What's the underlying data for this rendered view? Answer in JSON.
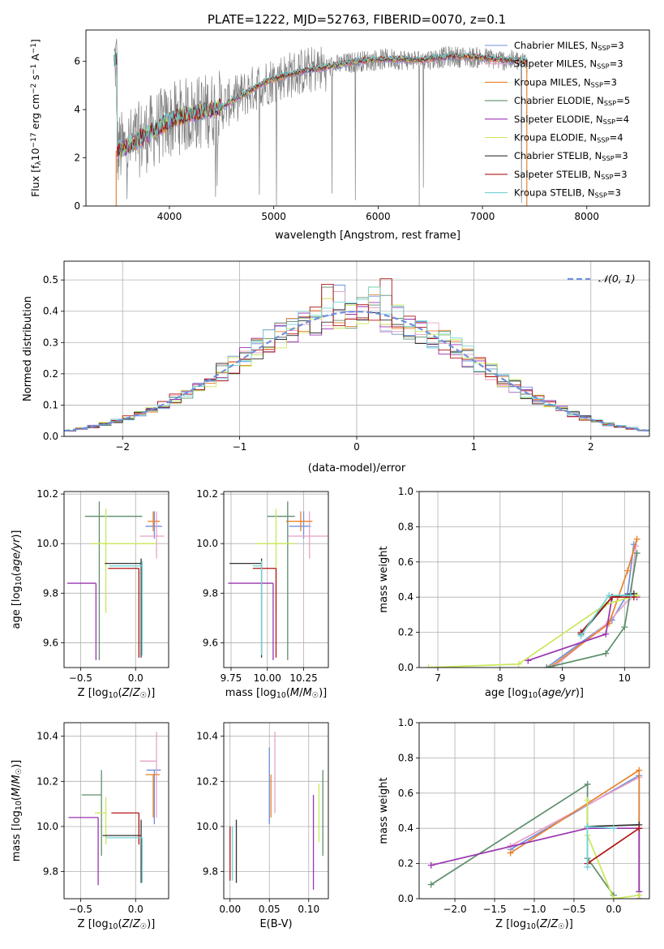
{
  "figure_title": "PLATE=1222, MJD=52763, FIBERID=0070, z=0.1",
  "palette": {
    "Chabrier MILES": "#6f8fdc",
    "Salpeter MILES": "#e8a1c8",
    "Kroupa MILES": "#e8822b",
    "Chabrier ELODIE": "#5d8f6b",
    "Salpeter ELODIE": "#9a33b0",
    "Kroupa ELODIE": "#c8e85a",
    "Chabrier STELIB": "#333333",
    "Salpeter STELIB": "#b01515",
    "Kroupa STELIB": "#70d6d6",
    "data": "#808080",
    "grid": "#b0b0b0",
    "normal": "#6f8fdc"
  },
  "chart_data": [
    {
      "id": "spectrum",
      "type": "line",
      "title": "",
      "xlabel": "wavelength [Angstrom, rest frame]",
      "ylabel_main": "Flux [f",
      "ylabel_sub": "λ",
      "ylabel_rest": "10",
      "ylabel_sup1": "−17",
      "ylabel_mid": " erg cm",
      "ylabel_sup2": "−2",
      "ylabel_mid2": " s",
      "ylabel_sup3": "−1",
      "ylabel_mid3": " A",
      "ylabel_sup4": "−1",
      "ylabel_end": "]",
      "xlim": [
        3200,
        8600
      ],
      "ylim": [
        0,
        7.3
      ],
      "xticks": [
        4000,
        5000,
        6000,
        7000,
        8000
      ],
      "yticks": [
        0,
        2,
        4,
        6
      ],
      "grid": false,
      "legend_position": "top-right",
      "legend": [
        {
          "label": "Chabrier MILES, N",
          "sub": "SSP",
          "tail": "=3"
        },
        {
          "label": "Salpeter MILES, N",
          "sub": "SSP",
          "tail": "=3"
        },
        {
          "label": "Kroupa MILES, N",
          "sub": "SSP",
          "tail": "=3"
        },
        {
          "label": "Chabrier ELODIE, N",
          "sub": "SSP",
          "tail": "=5"
        },
        {
          "label": "Salpeter ELODIE, N",
          "sub": "SSP",
          "tail": "=4"
        },
        {
          "label": "Kroupa ELODIE, N",
          "sub": "SSP",
          "tail": "=4"
        },
        {
          "label": "Chabrier STELIB, N",
          "sub": "SSP",
          "tail": "=3"
        },
        {
          "label": "Salpeter STELIB, N",
          "sub": "SSP",
          "tail": "=3"
        },
        {
          "label": "Kroupa STELIB, N",
          "sub": "SSP",
          "tail": "=3"
        }
      ],
      "continuum": [
        [
          3500,
          2.3
        ],
        [
          3650,
          2.6
        ],
        [
          3800,
          3.0
        ],
        [
          3950,
          3.4
        ],
        [
          4100,
          3.7
        ],
        [
          4300,
          3.9
        ],
        [
          4500,
          4.1
        ],
        [
          4700,
          4.6
        ],
        [
          4900,
          5.1
        ],
        [
          5100,
          5.4
        ],
        [
          5300,
          5.6
        ],
        [
          5500,
          5.75
        ],
        [
          5800,
          6.0
        ],
        [
          6100,
          6.1
        ],
        [
          6400,
          6.05
        ],
        [
          6700,
          6.2
        ],
        [
          7000,
          6.15
        ],
        [
          7200,
          6.05
        ],
        [
          7400,
          6.0
        ]
      ],
      "data_range": [
        3470,
        7430
      ],
      "model_range": [
        3470,
        7430
      ]
    },
    {
      "id": "residuals",
      "type": "histogram",
      "title": "",
      "xlabel": "(data-model)/error",
      "ylabel": "Normed distribution",
      "xlim": [
        -2.5,
        2.5
      ],
      "ylim": [
        0,
        0.56
      ],
      "xticks": [
        -2,
        -1,
        0,
        1,
        2
      ],
      "yticks": [
        0.0,
        0.1,
        0.2,
        0.3,
        0.4,
        0.5
      ],
      "grid": true,
      "legend_position": "top-right",
      "legend": "𝒩(0, 1)",
      "bin_width": 0.1,
      "bin_start": -2.5
    },
    {
      "id": "age_vs_Z",
      "type": "errorbar",
      "xlabel": "Z [log₁₀(Z/Z☉)]",
      "ylabel": "age  [log₁₀(age/yr)]",
      "xlim": [
        -0.65,
        0.3
      ],
      "ylim": [
        9.5,
        10.21
      ],
      "xticks": [
        -0.5,
        0.0
      ],
      "yticks": [
        9.6,
        9.8,
        10.0,
        10.2
      ],
      "grid": true,
      "points": [
        {
          "series": "Chabrier MILES",
          "x": 0.17,
          "xerr": [
            0.08,
            0.07
          ],
          "y": 10.07,
          "yerr": [
            0.05,
            0.06
          ]
        },
        {
          "series": "Salpeter MILES",
          "x": 0.19,
          "xerr": [
            0.15,
            0.07
          ],
          "y": 10.03,
          "yerr": [
            0.09,
            0.1
          ]
        },
        {
          "series": "Kroupa MILES",
          "x": 0.16,
          "xerr": [
            0.05,
            0.06
          ],
          "y": 10.09,
          "yerr": [
            0.04,
            0.04
          ]
        },
        {
          "series": "Chabrier ELODIE",
          "x": -0.33,
          "xerr": [
            0.13,
            0.39
          ],
          "y": 10.11,
          "yerr": [
            0.58,
            0.06
          ]
        },
        {
          "series": "Salpeter ELODIE",
          "x": -0.36,
          "xerr": [
            0.26,
            0.0
          ],
          "y": 9.84,
          "yerr": [
            0.31,
            0.0
          ]
        },
        {
          "series": "Kroupa ELODIE",
          "x": -0.27,
          "xerr": [
            0.13,
            0.46
          ],
          "y": 10.0,
          "yerr": [
            0.28,
            0.14
          ]
        },
        {
          "series": "Chabrier STELIB",
          "x": 0.05,
          "xerr": [
            0.33,
            0.0
          ],
          "y": 9.92,
          "yerr": [
            0.38,
            0.02
          ]
        },
        {
          "series": "Salpeter STELIB",
          "x": 0.03,
          "xerr": [
            0.28,
            0.0
          ],
          "y": 9.9,
          "yerr": [
            0.36,
            0.0
          ]
        },
        {
          "series": "Kroupa STELIB",
          "x": 0.06,
          "xerr": [
            0.3,
            0.0
          ],
          "y": 9.91,
          "yerr": [
            0.36,
            0.02
          ]
        }
      ]
    },
    {
      "id": "age_vs_mass",
      "type": "errorbar",
      "xlabel": "mass [log₁₀(M/M☉)]",
      "ylabel": "",
      "xlim": [
        9.7,
        10.42
      ],
      "ylim": [
        9.5,
        10.21
      ],
      "xticks": [
        9.75,
        10.0,
        10.25
      ],
      "yticks": [
        9.6,
        9.8,
        10.0,
        10.2
      ],
      "grid": true,
      "points": [
        {
          "series": "Chabrier MILES",
          "x": 10.25,
          "xerr": [
            0.1,
            0.05
          ],
          "y": 10.07,
          "yerr": [
            0.05,
            0.06
          ]
        },
        {
          "series": "Salpeter MILES",
          "x": 10.29,
          "xerr": [
            0.15,
            0.13
          ],
          "y": 10.03,
          "yerr": [
            0.09,
            0.1
          ]
        },
        {
          "series": "Kroupa MILES",
          "x": 10.23,
          "xerr": [
            0.1,
            0.08
          ],
          "y": 10.09,
          "yerr": [
            0.04,
            0.04
          ]
        },
        {
          "series": "Chabrier ELODIE",
          "x": 10.14,
          "xerr": [
            0.14,
            0.05
          ],
          "y": 10.11,
          "yerr": [
            0.58,
            0.06
          ]
        },
        {
          "series": "Salpeter ELODIE",
          "x": 10.04,
          "xerr": [
            0.31,
            0.0
          ],
          "y": 9.84,
          "yerr": [
            0.31,
            0.0
          ]
        },
        {
          "series": "Kroupa ELODIE",
          "x": 10.06,
          "xerr": [
            0.14,
            0.13
          ],
          "y": 10.0,
          "yerr": [
            0.28,
            0.14
          ]
        },
        {
          "series": "Chabrier STELIB",
          "x": 9.96,
          "xerr": [
            0.22,
            0.0
          ],
          "y": 9.92,
          "yerr": [
            0.38,
            0.02
          ]
        },
        {
          "series": "Salpeter STELIB",
          "x": 10.06,
          "xerr": [
            0.16,
            0.0
          ],
          "y": 9.9,
          "yerr": [
            0.36,
            0.0
          ]
        },
        {
          "series": "Kroupa STELIB",
          "x": 9.96,
          "xerr": [
            0.06,
            0.0
          ],
          "y": 9.91,
          "yerr": [
            0.36,
            0.02
          ]
        }
      ]
    },
    {
      "id": "weight_vs_age",
      "type": "line",
      "xlabel": "age  [log₁₀(age/yr)]",
      "ylabel": "mass weight",
      "xlim": [
        6.7,
        10.4
      ],
      "ylim": [
        0,
        1.0
      ],
      "xticks": [
        7,
        8,
        9,
        10
      ],
      "yticks": [
        0.0,
        0.2,
        0.4,
        0.6,
        0.8,
        1.0
      ],
      "grid": true,
      "series": [
        {
          "name": "Chabrier MILES",
          "x": [
            8.75,
            9.8,
            10.05,
            10.15
          ],
          "y": [
            0.0,
            0.27,
            0.42,
            0.7
          ]
        },
        {
          "name": "Salpeter MILES",
          "x": [
            8.85,
            9.75,
            10.1,
            10.18
          ],
          "y": [
            0.0,
            0.26,
            0.4,
            0.69
          ]
        },
        {
          "name": "Kroupa MILES",
          "x": [
            8.8,
            9.75,
            10.05,
            10.2
          ],
          "y": [
            0.0,
            0.25,
            0.55,
            0.73
          ]
        },
        {
          "name": "Chabrier ELODIE",
          "x": [
            8.75,
            9.7,
            10.0,
            10.2
          ],
          "y": [
            0.0,
            0.08,
            0.23,
            0.65
          ]
        },
        {
          "name": "Salpeter ELODIE",
          "x": [
            8.45,
            9.7,
            9.8,
            10.2
          ],
          "y": [
            0.04,
            0.19,
            0.4,
            0.4
          ]
        },
        {
          "name": "Kroupa ELODIE",
          "x": [
            6.85,
            8.3,
            9.7,
            10.2
          ],
          "y": [
            0.0,
            0.02,
            0.36,
            0.41
          ]
        },
        {
          "name": "Chabrier STELIB",
          "x": [
            9.3,
            9.8,
            10.15
          ],
          "y": [
            0.19,
            0.4,
            0.42
          ]
        },
        {
          "name": "Salpeter STELIB",
          "x": [
            9.3,
            9.8,
            10.15
          ],
          "y": [
            0.2,
            0.4,
            0.4
          ]
        },
        {
          "name": "Kroupa STELIB",
          "x": [
            9.3,
            9.75,
            10.1
          ],
          "y": [
            0.18,
            0.41,
            0.41
          ]
        }
      ]
    },
    {
      "id": "mass_vs_Z",
      "type": "errorbar",
      "xlabel": "Z [log₁₀(Z/Z☉)]",
      "ylabel": "mass [log₁₀(M/M☉)]",
      "xlim": [
        -0.65,
        0.3
      ],
      "ylim": [
        9.68,
        10.46
      ],
      "xticks": [
        -0.5,
        0.0
      ],
      "yticks": [
        9.8,
        10.0,
        10.2,
        10.4
      ],
      "grid": true,
      "points": [
        {
          "series": "Chabrier MILES",
          "x": 0.17,
          "xerr": [
            0.07,
            0.06
          ],
          "y": 10.25,
          "yerr": [
            0.24,
            0.0
          ]
        },
        {
          "series": "Salpeter MILES",
          "x": 0.19,
          "xerr": [
            0.15,
            0.0
          ],
          "y": 10.29,
          "yerr": [
            0.25,
            0.13
          ]
        },
        {
          "series": "Kroupa MILES",
          "x": 0.16,
          "xerr": [
            0.07,
            0.06
          ],
          "y": 10.23,
          "yerr": [
            0.19,
            0.0
          ]
        },
        {
          "series": "Chabrier ELODIE",
          "x": -0.31,
          "xerr": [
            0.18,
            0.0
          ],
          "y": 10.14,
          "yerr": [
            0.27,
            0.11
          ]
        },
        {
          "series": "Salpeter ELODIE",
          "x": -0.34,
          "xerr": [
            0.27,
            0.0
          ],
          "y": 10.04,
          "yerr": [
            0.3,
            0.0
          ]
        },
        {
          "series": "Kroupa ELODIE",
          "x": -0.27,
          "xerr": [
            0.1,
            0.0
          ],
          "y": 10.06,
          "yerr": [
            0.14,
            0.07
          ]
        },
        {
          "series": "Chabrier STELIB",
          "x": 0.05,
          "xerr": [
            0.35,
            0.0
          ],
          "y": 9.96,
          "yerr": [
            0.21,
            0.07
          ]
        },
        {
          "series": "Salpeter STELIB",
          "x": 0.03,
          "xerr": [
            0.25,
            0.0
          ],
          "y": 10.06,
          "yerr": [
            0.14,
            0.0
          ]
        },
        {
          "series": "Kroupa STELIB",
          "x": 0.06,
          "xerr": [
            0.33,
            0.0
          ],
          "y": 9.95,
          "yerr": [
            0.2,
            0.0
          ]
        }
      ]
    },
    {
      "id": "mass_vs_ebv",
      "type": "errorbar",
      "xlabel": "E(B-V)",
      "ylabel": "",
      "xlim": [
        -0.008,
        0.125
      ],
      "ylim": [
        9.68,
        10.46
      ],
      "xticks": [
        0.0,
        0.05,
        0.1
      ],
      "yticks": [
        9.8,
        10.0,
        10.2,
        10.4
      ],
      "grid": true,
      "points": [
        {
          "series": "Chabrier MILES",
          "x": 0.05,
          "y": 10.18,
          "yerr": [
            0.17,
            0.17
          ]
        },
        {
          "series": "Salpeter MILES",
          "x": 0.057,
          "y": 10.24,
          "yerr": [
            0.18,
            0.18
          ]
        },
        {
          "series": "Kroupa MILES",
          "x": 0.052,
          "y": 10.23,
          "yerr": [
            0.19,
            0.0
          ]
        },
        {
          "series": "Chabrier ELODIE",
          "x": 0.118,
          "y": 10.06,
          "yerr": [
            0.19,
            0.19
          ]
        },
        {
          "series": "Salpeter ELODIE",
          "x": 0.106,
          "y": 9.93,
          "yerr": [
            0.21,
            0.21
          ]
        },
        {
          "series": "Kroupa ELODIE",
          "x": 0.113,
          "y": 10.06,
          "yerr": [
            0.13,
            0.13
          ]
        },
        {
          "series": "Chabrier STELIB",
          "x": 0.008,
          "y": 9.89,
          "yerr": [
            0.14,
            0.14
          ]
        },
        {
          "series": "Salpeter STELIB",
          "x": 0.0,
          "y": 9.88,
          "yerr": [
            0.12,
            0.12
          ]
        },
        {
          "series": "Kroupa STELIB",
          "x": 0.003,
          "y": 9.88,
          "yerr": [
            0.12,
            0.12
          ]
        }
      ]
    },
    {
      "id": "weight_vs_Z",
      "type": "line",
      "xlabel": "Z [log₁₀(Z/Z☉)]",
      "ylabel": "mass weight",
      "xlim": [
        -2.45,
        0.45
      ],
      "ylim": [
        0,
        1.0
      ],
      "xticks": [
        -2.0,
        -1.5,
        -1.0,
        -0.5,
        0.0
      ],
      "yticks": [
        0.0,
        0.2,
        0.4,
        0.6,
        0.8,
        1.0
      ],
      "grid": true,
      "series": [
        {
          "name": "Chabrier MILES",
          "x": [
            -1.3,
            0.32,
            0.32
          ],
          "y": [
            0.28,
            0.7,
            0.0
          ]
        },
        {
          "name": "Salpeter MILES",
          "x": [
            -1.3,
            0.32,
            0.32
          ],
          "y": [
            0.3,
            0.69,
            0.0
          ]
        },
        {
          "name": "Kroupa MILES",
          "x": [
            -1.3,
            0.32,
            0.32
          ],
          "y": [
            0.26,
            0.73,
            0.0
          ]
        },
        {
          "name": "Chabrier ELODIE",
          "x": [
            -2.3,
            -0.33,
            -0.33,
            0.0
          ],
          "y": [
            0.08,
            0.65,
            0.23,
            0.02
          ]
        },
        {
          "name": "Salpeter ELODIE",
          "x": [
            -2.3,
            -0.33,
            0.32,
            0.32
          ],
          "y": [
            0.19,
            0.4,
            0.4,
            0.04
          ]
        },
        {
          "name": "Kroupa ELODIE",
          "x": [
            -0.33,
            -0.33,
            0.0,
            0.32
          ],
          "y": [
            0.56,
            0.36,
            0.0,
            0.02
          ]
        },
        {
          "name": "Chabrier STELIB",
          "x": [
            -0.33,
            0.32
          ],
          "y": [
            0.41,
            0.42
          ]
        },
        {
          "name": "Salpeter STELIB",
          "x": [
            -0.33,
            0.32
          ],
          "y": [
            0.2,
            0.4
          ]
        },
        {
          "name": "Kroupa STELIB",
          "x": [
            -0.33,
            -0.33,
            0.0
          ],
          "y": [
            0.18,
            0.41,
            0.4
          ]
        }
      ]
    }
  ]
}
